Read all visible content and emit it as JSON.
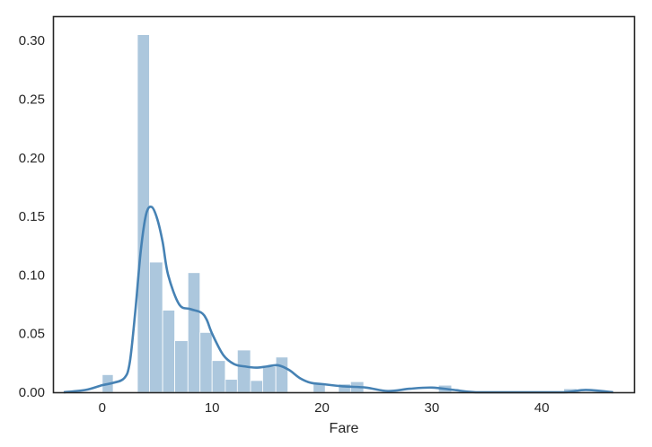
{
  "chart_data": {
    "type": "bar",
    "subtype": "histogram-with-kde",
    "title": "",
    "xlabel": "Fare",
    "ylabel": "",
    "xlim": [
      -4.4,
      48.4
    ],
    "ylim": [
      0,
      0.32
    ],
    "xticks": [
      0,
      10,
      20,
      30,
      40
    ],
    "yticks": [
      0.0,
      0.05,
      0.1,
      0.15,
      0.2,
      0.25,
      0.3
    ],
    "ytick_labels": [
      "0.00",
      "0.05",
      "0.10",
      "0.15",
      "0.20",
      "0.25",
      "0.30"
    ],
    "grid": false,
    "legend": "none",
    "bar_color": "#4682b4",
    "bar_opacity": 0.45,
    "line_color": "#4682b4",
    "bins": [
      {
        "x0": 0.0,
        "x1": 1.0,
        "y": 0.015
      },
      {
        "x0": 1.0,
        "x1": 2.0,
        "y": 0.0
      },
      {
        "x0": 2.0,
        "x1": 3.2,
        "y": 0.0
      },
      {
        "x0": 3.2,
        "x1": 4.3,
        "y": 0.305
      },
      {
        "x0": 4.3,
        "x1": 5.5,
        "y": 0.111
      },
      {
        "x0": 5.5,
        "x1": 6.6,
        "y": 0.07
      },
      {
        "x0": 6.6,
        "x1": 7.8,
        "y": 0.044
      },
      {
        "x0": 7.8,
        "x1": 8.9,
        "y": 0.102
      },
      {
        "x0": 8.9,
        "x1": 10.0,
        "y": 0.051
      },
      {
        "x0": 10.0,
        "x1": 11.2,
        "y": 0.027
      },
      {
        "x0": 11.2,
        "x1": 12.3,
        "y": 0.011
      },
      {
        "x0": 12.3,
        "x1": 13.5,
        "y": 0.036
      },
      {
        "x0": 13.5,
        "x1": 14.6,
        "y": 0.01
      },
      {
        "x0": 14.6,
        "x1": 15.8,
        "y": 0.022
      },
      {
        "x0": 15.8,
        "x1": 16.9,
        "y": 0.03
      },
      {
        "x0": 16.9,
        "x1": 18.0,
        "y": 0.0
      },
      {
        "x0": 18.0,
        "x1": 19.2,
        "y": 0.0
      },
      {
        "x0": 19.2,
        "x1": 20.3,
        "y": 0.008
      },
      {
        "x0": 20.3,
        "x1": 21.5,
        "y": 0.0
      },
      {
        "x0": 21.5,
        "x1": 22.6,
        "y": 0.007
      },
      {
        "x0": 22.6,
        "x1": 23.8,
        "y": 0.009
      },
      {
        "x0": 23.8,
        "x1": 24.9,
        "y": 0.0
      },
      {
        "x0": 24.9,
        "x1": 26.0,
        "y": 0.0
      },
      {
        "x0": 26.0,
        "x1": 27.2,
        "y": 0.0
      },
      {
        "x0": 27.2,
        "x1": 28.3,
        "y": 0.0
      },
      {
        "x0": 28.3,
        "x1": 29.5,
        "y": 0.0
      },
      {
        "x0": 29.5,
        "x1": 30.6,
        "y": 0.0
      },
      {
        "x0": 30.6,
        "x1": 31.8,
        "y": 0.006
      },
      {
        "x0": 31.8,
        "x1": 32.9,
        "y": 0.0
      },
      {
        "x0": 42.0,
        "x1": 43.2,
        "y": 0.003
      }
    ],
    "kde": {
      "x": [
        -3.5,
        -1.5,
        0.0,
        1.0,
        2.0,
        2.5,
        3.0,
        3.5,
        4.0,
        4.5,
        5.0,
        5.5,
        6.0,
        7.0,
        8.0,
        9.0,
        9.5,
        10.0,
        11.0,
        12.0,
        13.0,
        14.0,
        15.0,
        16.0,
        17.0,
        18.0,
        19.0,
        20.0,
        22.0,
        24.0,
        26.0,
        28.0,
        30.0,
        32.0,
        34.0,
        38.0,
        42.0,
        44.0,
        46.5
      ],
      "y": [
        0.0,
        0.002,
        0.006,
        0.008,
        0.012,
        0.025,
        0.068,
        0.12,
        0.152,
        0.158,
        0.148,
        0.128,
        0.1,
        0.075,
        0.071,
        0.068,
        0.062,
        0.05,
        0.032,
        0.024,
        0.022,
        0.021,
        0.022,
        0.023,
        0.019,
        0.012,
        0.008,
        0.007,
        0.005,
        0.004,
        0.001,
        0.003,
        0.004,
        0.002,
        0.0,
        0.0,
        0.0,
        0.002,
        0.0
      ]
    }
  }
}
